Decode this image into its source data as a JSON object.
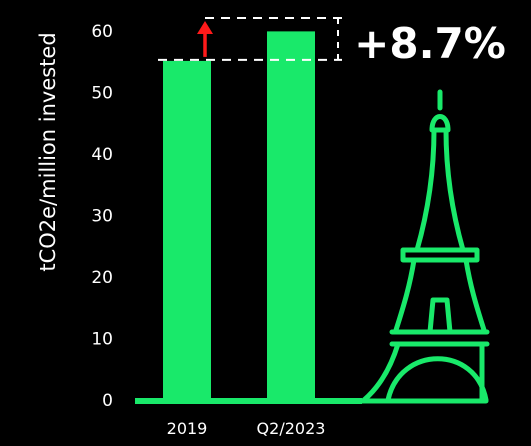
{
  "chart_data": {
    "type": "bar",
    "categories": [
      "2019",
      "Q2/2023"
    ],
    "values": [
      55.3,
      60.1
    ],
    "ylabel": "tCO2e/million invested",
    "yticks": [
      0,
      10,
      20,
      30,
      40,
      50,
      60
    ],
    "ylim": [
      0,
      65
    ],
    "grid": false,
    "annotation": {
      "text": "+8.7%",
      "from_category": "2019",
      "to_category": "Q2/2023",
      "arrow_direction": "up",
      "arrow_color": "#ff1a1a"
    }
  },
  "colors": {
    "background": "#000000",
    "bar": "#19e96a",
    "text": "#ffffff",
    "guide_lines": "#ffffff",
    "arrow": "#ff1a1a"
  },
  "decoration_icon": "eiffel-tower-icon"
}
